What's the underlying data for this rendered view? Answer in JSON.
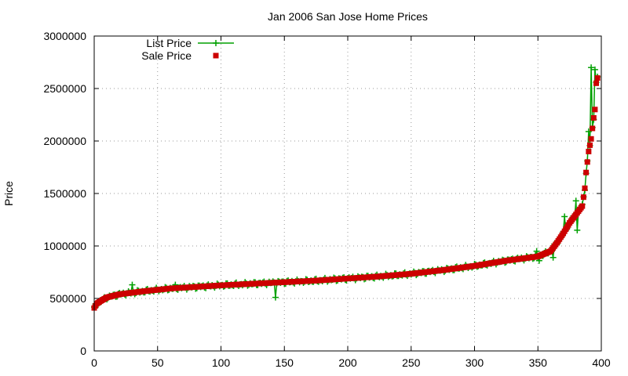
{
  "chart_data": {
    "type": "line",
    "title": "Jan 2006 San Jose Home Prices",
    "xlabel": "",
    "ylabel": "Price",
    "xlim": [
      0,
      400
    ],
    "ylim": [
      0,
      3000000
    ],
    "x_ticks": [
      0,
      50,
      100,
      150,
      200,
      250,
      300,
      350,
      400
    ],
    "y_ticks": [
      0,
      500000,
      1000000,
      1500000,
      2000000,
      2500000,
      3000000
    ],
    "grid": true,
    "legend_position": "top-left",
    "series": [
      {
        "name": "List Price",
        "marker": "plus",
        "color": "#00a000",
        "line": true
      },
      {
        "name": "Sale Price",
        "marker": "square",
        "color": "#cc0000",
        "line": false
      }
    ],
    "curve_anchors": [
      [
        0,
        410000
      ],
      [
        2,
        450000
      ],
      [
        5,
        475000
      ],
      [
        10,
        510000
      ],
      [
        20,
        540000
      ],
      [
        40,
        570000
      ],
      [
        60,
        595000
      ],
      [
        80,
        610000
      ],
      [
        100,
        625000
      ],
      [
        125,
        640000
      ],
      [
        150,
        655000
      ],
      [
        175,
        670000
      ],
      [
        200,
        690000
      ],
      [
        225,
        710000
      ],
      [
        250,
        735000
      ],
      [
        275,
        770000
      ],
      [
        300,
        810000
      ],
      [
        325,
        860000
      ],
      [
        350,
        900000
      ],
      [
        360,
        950000
      ],
      [
        365,
        1030000
      ],
      [
        370,
        1120000
      ],
      [
        375,
        1220000
      ],
      [
        380,
        1300000
      ],
      [
        385,
        1380000
      ],
      [
        387,
        1550000
      ],
      [
        388,
        1700000
      ],
      [
        390,
        1900000
      ],
      [
        392,
        2020000
      ],
      [
        394,
        2220000
      ],
      [
        395,
        2300000
      ],
      [
        396,
        2550000
      ],
      [
        397,
        2600000
      ]
    ],
    "list_outliers": [
      [
        30,
        630000
      ],
      [
        64,
        630000
      ],
      [
        143,
        510000
      ],
      [
        349,
        950000
      ],
      [
        351,
        860000
      ],
      [
        362,
        890000
      ],
      [
        371,
        1280000
      ],
      [
        380,
        1430000
      ],
      [
        381,
        1150000
      ],
      [
        390,
        2090000
      ],
      [
        392,
        2700000
      ],
      [
        395,
        2680000
      ]
    ]
  }
}
